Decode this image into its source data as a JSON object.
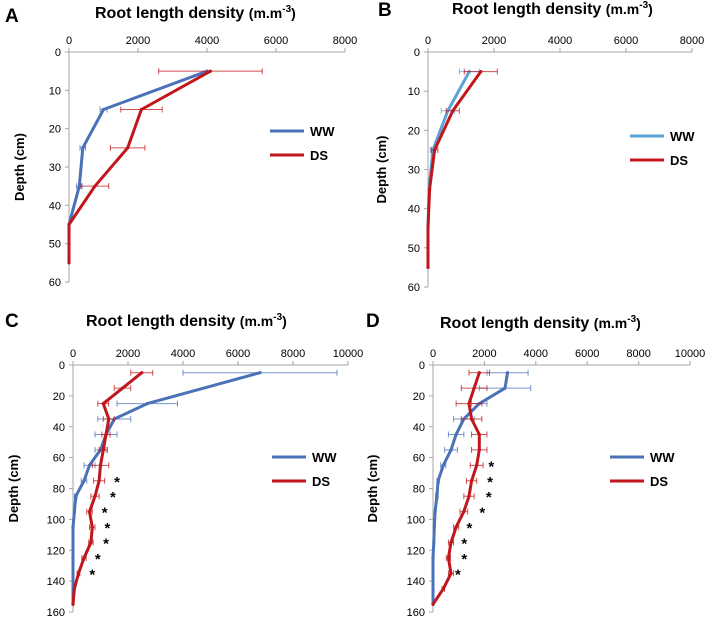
{
  "chart_data": [
    {
      "panel": "A",
      "type": "line",
      "title": "Root length density",
      "title_unit_base": "(m.m",
      "title_unit_sup": "-3",
      "title_unit_end": ")",
      "xlabel": "",
      "ylabel": "Depth (cm)",
      "xlim": [
        0,
        8000
      ],
      "ylim": [
        0,
        60
      ],
      "xticks": [
        0,
        2000,
        4000,
        6000,
        8000
      ],
      "yticks": [
        0,
        10,
        20,
        30,
        40,
        50,
        60
      ],
      "grid": false,
      "legend_position": "right",
      "series": [
        {
          "name": "WW",
          "color": "#4a72b8",
          "points": [
            [
              4000,
              5
            ],
            [
              1000,
              15
            ],
            [
              400,
              25
            ],
            [
              300,
              35
            ],
            [
              0,
              45
            ]
          ],
          "err": [
            null,
            100,
            80,
            80,
            null
          ]
        },
        {
          "name": "DS",
          "color": "#c0161c",
          "points": [
            [
              4100,
              5
            ],
            [
              2100,
              15
            ],
            [
              1700,
              25
            ],
            [
              750,
              35
            ],
            [
              0,
              45
            ],
            [
              0,
              55
            ]
          ],
          "err": [
            1500,
            600,
            500,
            400,
            null,
            null
          ]
        }
      ],
      "markers": []
    },
    {
      "panel": "B",
      "type": "line",
      "title": "Root length density",
      "title_unit_base": "(m.m",
      "title_unit_sup": "-3",
      "title_unit_end": ")",
      "xlabel": "",
      "ylabel": "Depth (cm)",
      "xlim": [
        0,
        8000
      ],
      "ylim": [
        0,
        60
      ],
      "xticks": [
        0,
        2000,
        4000,
        6000,
        8000
      ],
      "yticks": [
        0,
        10,
        20,
        30,
        40,
        50,
        60
      ],
      "grid": false,
      "legend_position": "right",
      "series": [
        {
          "name": "WW",
          "color": "#5ba3d6",
          "points": [
            [
              1250,
              5
            ],
            [
              600,
              15
            ],
            [
              150,
              25
            ],
            [
              30,
              35
            ],
            [
              0,
              45
            ],
            [
              0,
              55
            ]
          ],
          "err": [
            300,
            200,
            80,
            null,
            null,
            null
          ]
        },
        {
          "name": "DS",
          "color": "#c0161c",
          "points": [
            [
              1600,
              5
            ],
            [
              750,
              15
            ],
            [
              200,
              25
            ],
            [
              50,
              35
            ],
            [
              0,
              45
            ],
            [
              0,
              55
            ]
          ],
          "err": [
            500,
            200,
            100,
            null,
            null,
            null
          ]
        }
      ],
      "markers": []
    },
    {
      "panel": "C",
      "type": "line",
      "title": "Root length density",
      "title_unit_base": "(m.m",
      "title_unit_sup": "-3",
      "title_unit_end": ")",
      "xlabel": "",
      "ylabel": "Depth (cm)",
      "xlim": [
        0,
        10000
      ],
      "ylim": [
        0,
        160
      ],
      "xticks": [
        0,
        2000,
        4000,
        6000,
        8000,
        10000
      ],
      "yticks": [
        0,
        20,
        40,
        60,
        80,
        100,
        120,
        140,
        160
      ],
      "grid": false,
      "legend_position": "right",
      "series": [
        {
          "name": "WW",
          "color": "#4a72b8",
          "points": [
            [
              6800,
              5
            ],
            [
              2700,
              25
            ],
            [
              1500,
              35
            ],
            [
              1200,
              45
            ],
            [
              1000,
              55
            ],
            [
              600,
              65
            ],
            [
              400,
              75
            ],
            [
              100,
              85
            ],
            [
              50,
              95
            ],
            [
              0,
              105
            ],
            [
              0,
              115
            ],
            [
              0,
              125
            ],
            [
              0,
              135
            ],
            [
              0,
              145
            ],
            [
              0,
              155
            ]
          ],
          "err": [
            2800,
            1100,
            600,
            400,
            200,
            200,
            100,
            50,
            null,
            null,
            null,
            null,
            null,
            null,
            null
          ]
        },
        {
          "name": "DS",
          "color": "#c0161c",
          "points": [
            [
              2500,
              5
            ],
            [
              1800,
              15
            ],
            [
              1100,
              25
            ],
            [
              1300,
              35
            ],
            [
              1200,
              45
            ],
            [
              1100,
              55
            ],
            [
              1000,
              65
            ],
            [
              950,
              75
            ],
            [
              800,
              85
            ],
            [
              600,
              95
            ],
            [
              700,
              105
            ],
            [
              650,
              115
            ],
            [
              400,
              125
            ],
            [
              200,
              135
            ],
            [
              50,
              145
            ],
            [
              0,
              155
            ]
          ],
          "err": [
            400,
            300,
            200,
            200,
            150,
            150,
            300,
            200,
            150,
            100,
            100,
            80,
            80,
            50,
            null,
            null
          ]
        }
      ],
      "markers": [
        {
          "text": "*",
          "x": 1350,
          "y": 75
        },
        {
          "text": "*",
          "x": 1200,
          "y": 85
        },
        {
          "text": "*",
          "x": 900,
          "y": 95
        },
        {
          "text": "*",
          "x": 1000,
          "y": 105
        },
        {
          "text": "*",
          "x": 950,
          "y": 115
        },
        {
          "text": "*",
          "x": 650,
          "y": 125
        },
        {
          "text": "*",
          "x": 450,
          "y": 135
        }
      ]
    },
    {
      "panel": "D",
      "type": "line",
      "title": "Root length density",
      "title_unit_base": "(m.m",
      "title_unit_sup": "-3",
      "title_unit_end": ")",
      "xlabel": "",
      "ylabel": "Depth (cm)",
      "xlim": [
        0,
        10000
      ],
      "ylim": [
        0,
        160
      ],
      "xticks": [
        0,
        2000,
        4000,
        6000,
        8000,
        10000
      ],
      "yticks": [
        0,
        20,
        40,
        60,
        80,
        100,
        120,
        140,
        160
      ],
      "grid": false,
      "legend_position": "right",
      "series": [
        {
          "name": "WW",
          "color": "#4a72b8",
          "points": [
            [
              2900,
              5
            ],
            [
              2800,
              15
            ],
            [
              1800,
              25
            ],
            [
              1200,
              35
            ],
            [
              900,
              45
            ],
            [
              700,
              55
            ],
            [
              400,
              65
            ],
            [
              200,
              75
            ],
            [
              150,
              85
            ],
            [
              80,
              95
            ],
            [
              50,
              105
            ],
            [
              30,
              115
            ],
            [
              0,
              125
            ],
            [
              0,
              135
            ],
            [
              0,
              145
            ],
            [
              0,
              155
            ]
          ],
          "err": [
            800,
            1000,
            300,
            400,
            300,
            250,
            100,
            50,
            50,
            null,
            null,
            null,
            null,
            null,
            null,
            null
          ]
        },
        {
          "name": "DS",
          "color": "#c0161c",
          "points": [
            [
              1800,
              5
            ],
            [
              1600,
              15
            ],
            [
              1400,
              25
            ],
            [
              1500,
              35
            ],
            [
              1800,
              45
            ],
            [
              1800,
              55
            ],
            [
              1700,
              65
            ],
            [
              1500,
              75
            ],
            [
              1400,
              85
            ],
            [
              1200,
              95
            ],
            [
              900,
              105
            ],
            [
              700,
              115
            ],
            [
              600,
              125
            ],
            [
              700,
              135
            ],
            [
              400,
              145
            ],
            [
              0,
              155
            ]
          ],
          "err": [
            400,
            500,
            500,
            400,
            300,
            300,
            250,
            200,
            200,
            150,
            100,
            100,
            80,
            100,
            50,
            null
          ]
        }
      ],
      "markers": [
        {
          "text": "*",
          "x": 2000,
          "y": 65
        },
        {
          "text": "*",
          "x": 1950,
          "y": 75
        },
        {
          "text": "*",
          "x": 1900,
          "y": 85
        },
        {
          "text": "*",
          "x": 1650,
          "y": 95
        },
        {
          "text": "*",
          "x": 1150,
          "y": 105
        },
        {
          "text": "*",
          "x": 950,
          "y": 115
        },
        {
          "text": "*",
          "x": 950,
          "y": 125
        },
        {
          "text": "*",
          "x": 700,
          "y": 135
        }
      ]
    }
  ]
}
